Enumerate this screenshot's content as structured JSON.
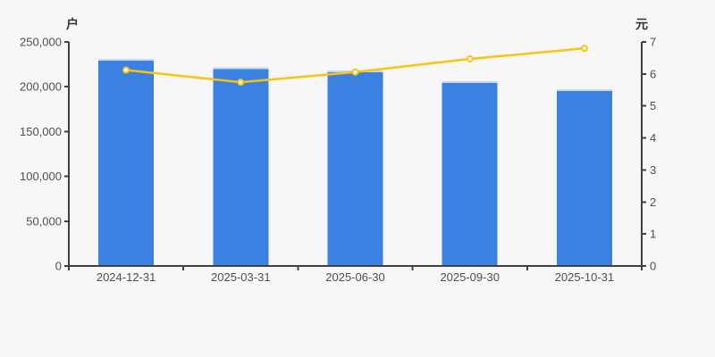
{
  "page": {
    "background": "#f7f7f7"
  },
  "chart_data": {
    "type": "bar+line",
    "title": "",
    "categories": [
      "2024-12-31",
      "2025-03-31",
      "2025-06-30",
      "2025-09-30",
      "2025-10-31"
    ],
    "series": [
      {
        "name": "户",
        "type": "bar",
        "axis": "left",
        "color": "#3a81e2",
        "values": [
          231000,
          221500,
          218000,
          206000,
          197000
        ]
      },
      {
        "name": "元",
        "type": "line",
        "axis": "right",
        "color": "#fcc30b",
        "values": [
          6.12,
          5.74,
          6.06,
          6.47,
          6.8
        ]
      }
    ],
    "left_axis": {
      "label": "户",
      "min": 0,
      "max": 250000,
      "tick_step": 50000,
      "tick_labels": [
        "0",
        "50,000",
        "100,000",
        "150,000",
        "200,000",
        "250,000"
      ]
    },
    "right_axis": {
      "label": "元",
      "min": 0,
      "max": 7,
      "tick_step": 1,
      "tick_labels": [
        "0",
        "1",
        "2",
        "3",
        "4",
        "5",
        "6",
        "7"
      ]
    },
    "grid": false,
    "legend": "none",
    "styles": {
      "axis_color": "#404040",
      "tick_text_color": "#4f4f4f",
      "bar_top_cap_color": "#cfe3f8",
      "marker_fill": "#ffffff"
    }
  }
}
